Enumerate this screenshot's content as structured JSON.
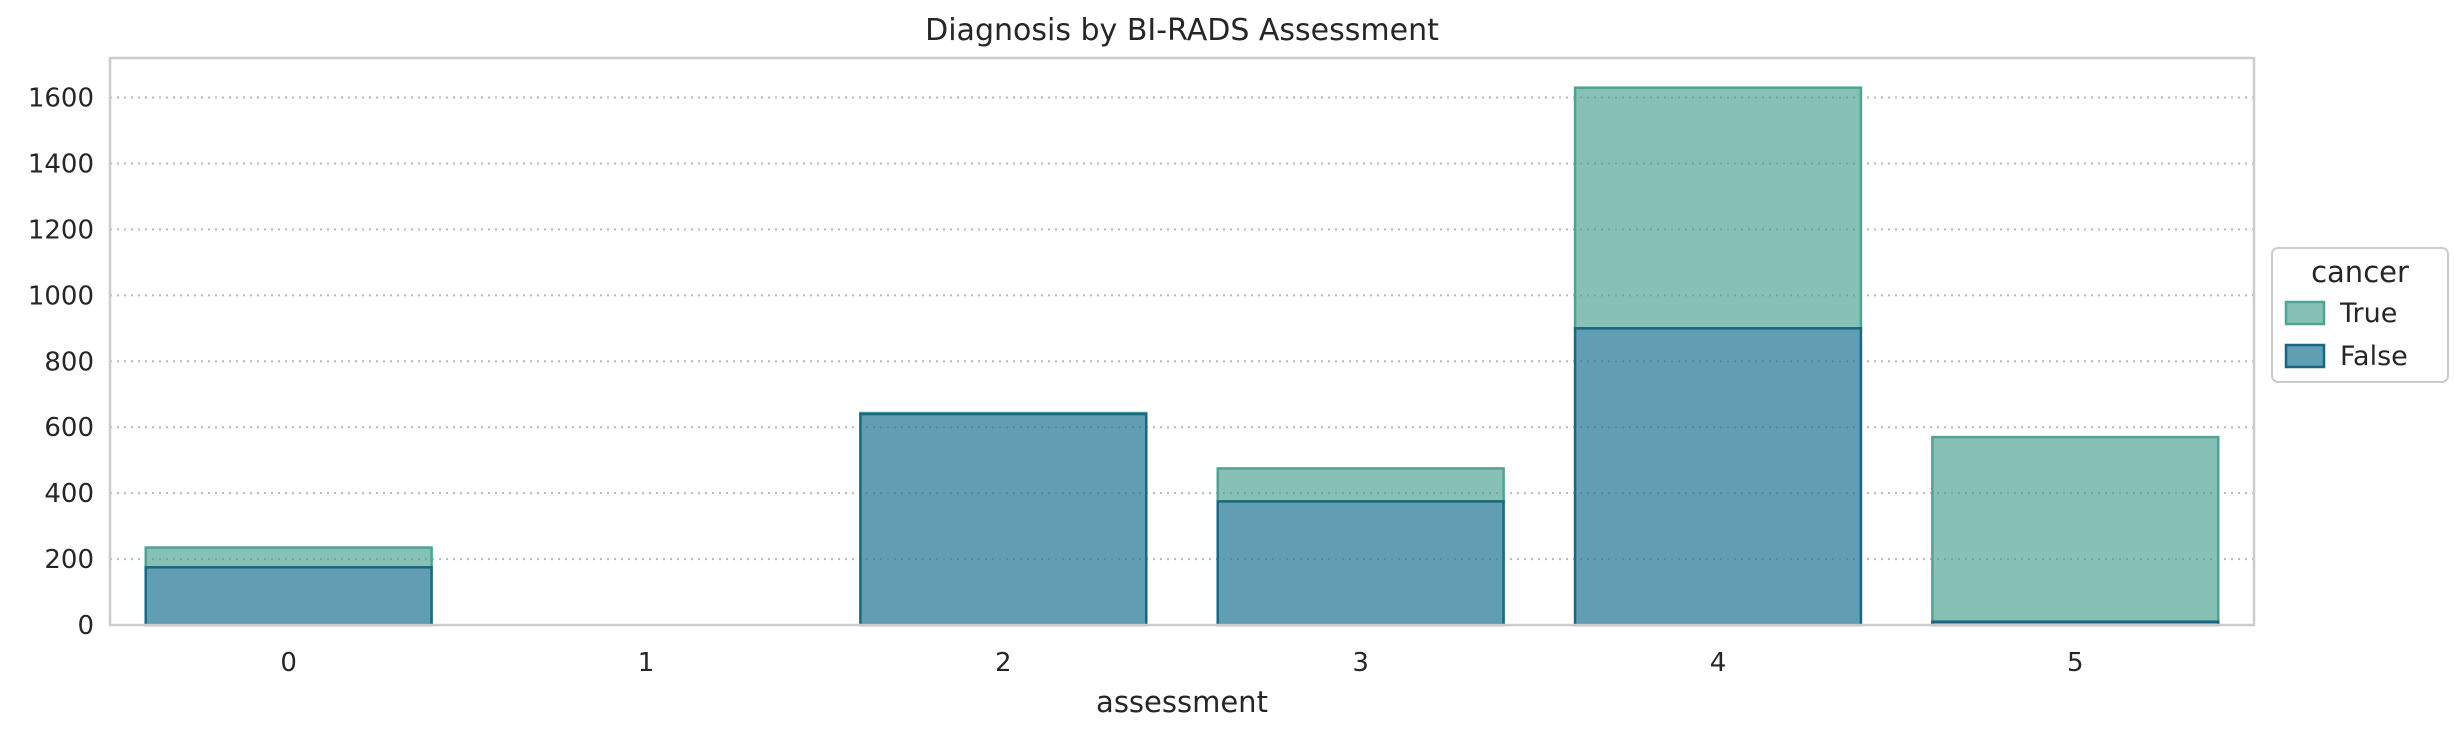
{
  "chart_data": {
    "type": "bar",
    "stacked": true,
    "title": "Diagnosis by BI-RADS Assessment",
    "xlabel": "assessment",
    "ylabel": "",
    "categories": [
      "0",
      "1",
      "2",
      "3",
      "4",
      "5"
    ],
    "series": [
      {
        "name": "False",
        "values": [
          175,
          0,
          640,
          375,
          900,
          10
        ],
        "color": "#2c7c9a"
      },
      {
        "name": "True",
        "values": [
          60,
          0,
          3,
          100,
          730,
          560
        ],
        "color": "#4ea493"
      }
    ],
    "ylim": [
      0,
      1720
    ],
    "yticks": [
      0,
      200,
      400,
      600,
      800,
      1000,
      1200,
      1400,
      1600
    ],
    "grid": "y-dotted",
    "legend": {
      "title": "cancer",
      "placement": "right",
      "entries": [
        "True",
        "False"
      ]
    }
  }
}
